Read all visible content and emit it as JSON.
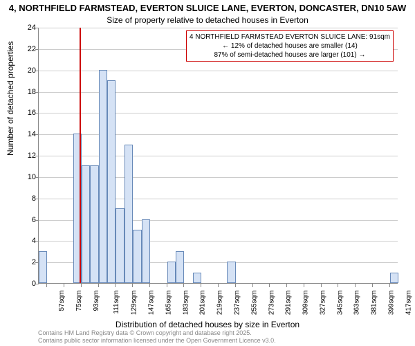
{
  "title": {
    "main": "4, NORTHFIELD FARMSTEAD, EVERTON SLUICE LANE, EVERTON, DONCASTER, DN10 5AW",
    "sub": "Size of property relative to detached houses in Everton"
  },
  "chart": {
    "type": "histogram",
    "bar_color": "#d5e2f5",
    "bar_border_color": "#6789b8",
    "background_color": "#ffffff",
    "grid_color": "#cccccc",
    "axis_color": "#888888",
    "marker_color": "#cc0000",
    "ylabel": "Number of detached properties",
    "xlabel": "Distribution of detached houses by size in Everton",
    "ylim": [
      0,
      24
    ],
    "ytick_step": 2,
    "yticks": [
      0,
      2,
      4,
      6,
      8,
      10,
      12,
      14,
      16,
      18,
      20,
      22,
      24
    ],
    "xticks": [
      "57sqm",
      "75sqm",
      "93sqm",
      "111sqm",
      "129sqm",
      "147sqm",
      "165sqm",
      "183sqm",
      "201sqm",
      "219sqm",
      "237sqm",
      "255sqm",
      "273sqm",
      "291sqm",
      "309sqm",
      "327sqm",
      "345sqm",
      "363sqm",
      "381sqm",
      "399sqm",
      "417sqm"
    ],
    "xtick_values": [
      57,
      75,
      93,
      111,
      129,
      147,
      165,
      183,
      201,
      219,
      237,
      255,
      273,
      291,
      309,
      327,
      345,
      363,
      381,
      399,
      417
    ],
    "x_range": [
      48,
      426
    ],
    "bar_width_sqm": 9,
    "bars": [
      {
        "start": 48,
        "value": 3
      },
      {
        "start": 57,
        "value": 0
      },
      {
        "start": 66,
        "value": 0
      },
      {
        "start": 75,
        "value": 0
      },
      {
        "start": 84,
        "value": 14
      },
      {
        "start": 93,
        "value": 11
      },
      {
        "start": 102,
        "value": 11
      },
      {
        "start": 111,
        "value": 20
      },
      {
        "start": 120,
        "value": 19
      },
      {
        "start": 129,
        "value": 7
      },
      {
        "start": 138,
        "value": 13
      },
      {
        "start": 147,
        "value": 5
      },
      {
        "start": 156,
        "value": 6
      },
      {
        "start": 165,
        "value": 0
      },
      {
        "start": 174,
        "value": 0
      },
      {
        "start": 183,
        "value": 2
      },
      {
        "start": 192,
        "value": 3
      },
      {
        "start": 201,
        "value": 0
      },
      {
        "start": 210,
        "value": 1
      },
      {
        "start": 219,
        "value": 0
      },
      {
        "start": 228,
        "value": 0
      },
      {
        "start": 237,
        "value": 0
      },
      {
        "start": 246,
        "value": 2
      },
      {
        "start": 255,
        "value": 0
      },
      {
        "start": 264,
        "value": 0
      },
      {
        "start": 273,
        "value": 0
      },
      {
        "start": 282,
        "value": 0
      },
      {
        "start": 291,
        "value": 0
      },
      {
        "start": 300,
        "value": 0
      },
      {
        "start": 309,
        "value": 0
      },
      {
        "start": 318,
        "value": 0
      },
      {
        "start": 327,
        "value": 0
      },
      {
        "start": 336,
        "value": 0
      },
      {
        "start": 345,
        "value": 0
      },
      {
        "start": 354,
        "value": 0
      },
      {
        "start": 363,
        "value": 0
      },
      {
        "start": 372,
        "value": 0
      },
      {
        "start": 381,
        "value": 0
      },
      {
        "start": 390,
        "value": 0
      },
      {
        "start": 399,
        "value": 0
      },
      {
        "start": 408,
        "value": 0
      },
      {
        "start": 417,
        "value": 1
      }
    ],
    "marker_x": 91,
    "annotation": {
      "line1": "4 NORTHFIELD FARMSTEAD EVERTON SLUICE LANE: 91sqm",
      "line2": "← 12% of detached houses are smaller (14)",
      "line3": "87% of semi-detached houses are larger (101) →"
    }
  },
  "footer": {
    "line1": "Contains HM Land Registry data © Crown copyright and database right 2025.",
    "line2": "Contains public sector information licensed under the Open Government Licence v3.0."
  }
}
